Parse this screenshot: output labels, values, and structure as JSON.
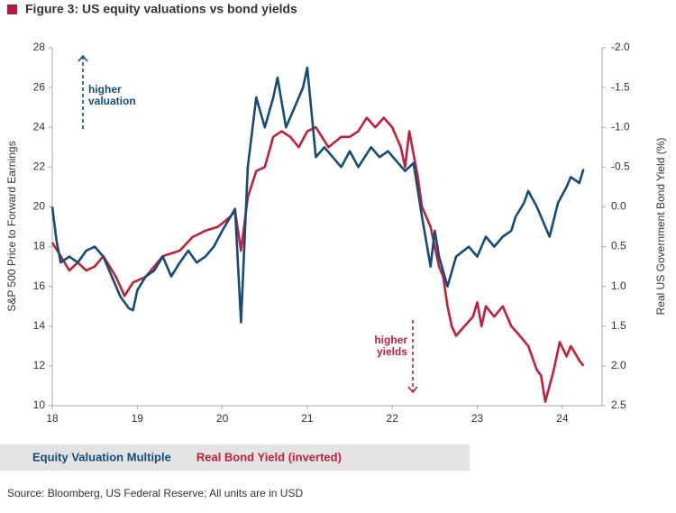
{
  "chart_data": {
    "type": "line",
    "title": "Figure 3: US equity valuations vs bond yields",
    "title_marker_color": "#b5173f",
    "ylabel": "S&P 500 Price to Forward Earnings",
    "y2label": "Real US Government Bond Yield (%)",
    "source": "Source: Bloomberg, US Federal Reserve; All units are in USD",
    "xlim": [
      18,
      24.5
    ],
    "xticks": [
      18,
      19,
      20,
      21,
      22,
      23,
      24
    ],
    "ylim": [
      10,
      28
    ],
    "yticks": [
      10,
      12,
      14,
      16,
      18,
      20,
      22,
      24,
      26,
      28
    ],
    "y2lim": [
      -2.0,
      2.5
    ],
    "y2_inverted": true,
    "y2ticks": [
      {
        "value": -2.0,
        "label": "-2.0"
      },
      -1.5,
      {
        "value": -1.0,
        "label": "-1.0"
      },
      -0.5,
      {
        "value": 0.0,
        "label": "0.0"
      },
      0.5,
      {
        "value": 1.0,
        "label": "1.0"
      },
      1.5,
      {
        "value": 2.0,
        "label": "2.0"
      },
      2.5
    ],
    "grid": false,
    "series": [
      {
        "name": "Equity Valuation Multiple",
        "color": "#154b78",
        "x": [
          18.0,
          18.05,
          18.1,
          18.2,
          18.3,
          18.4,
          18.5,
          18.6,
          18.7,
          18.8,
          18.9,
          18.95,
          19.0,
          19.1,
          19.2,
          19.3,
          19.4,
          19.5,
          19.6,
          19.7,
          19.8,
          19.9,
          20.0,
          20.15,
          20.22,
          20.3,
          20.4,
          20.5,
          20.6,
          20.65,
          20.75,
          20.85,
          20.95,
          21.0,
          21.1,
          21.2,
          21.3,
          21.4,
          21.5,
          21.6,
          21.75,
          21.85,
          21.95,
          22.05,
          22.15,
          22.25,
          22.35,
          22.45,
          22.5,
          22.55,
          22.65,
          22.75,
          22.9,
          23.0,
          23.1,
          23.2,
          23.3,
          23.4,
          23.45,
          23.55,
          23.6,
          23.7,
          23.85,
          23.95,
          24.05,
          24.1,
          24.2,
          24.25
        ],
        "values": [
          20,
          18.3,
          17.2,
          17.5,
          17.2,
          17.8,
          18,
          17.5,
          16.5,
          15.5,
          14.9,
          14.8,
          15.8,
          16.5,
          16.8,
          17.5,
          16.5,
          17.2,
          17.8,
          17.2,
          17.5,
          18,
          18.8,
          19.9,
          14.2,
          22,
          25.5,
          24,
          25.5,
          26.5,
          24,
          25,
          26,
          27,
          22.5,
          23,
          22.5,
          22,
          22.8,
          22,
          23,
          22.5,
          22.8,
          22.3,
          21.8,
          22.2,
          19.5,
          17,
          18.8,
          17.5,
          16,
          17.5,
          18,
          17.5,
          18.5,
          18,
          18.5,
          18.8,
          19.5,
          20.2,
          20.8,
          20,
          18.5,
          20.2,
          21,
          21.5,
          21.2,
          21.9
        ]
      },
      {
        "name": "Real Bond Yield (inverted)",
        "color": "#c0203a",
        "axis": "y2",
        "x": [
          18.0,
          18.1,
          18.2,
          18.3,
          18.4,
          18.5,
          18.6,
          18.75,
          18.85,
          18.95,
          19.1,
          19.3,
          19.5,
          19.65,
          19.8,
          19.95,
          20.1,
          20.15,
          20.22,
          20.3,
          20.4,
          20.5,
          20.6,
          20.7,
          20.8,
          20.9,
          21.0,
          21.1,
          21.25,
          21.4,
          21.5,
          21.6,
          21.7,
          21.8,
          21.9,
          22.0,
          22.1,
          22.15,
          22.2,
          22.3,
          22.35,
          22.45,
          22.5,
          22.55,
          22.6,
          22.65,
          22.7,
          22.75,
          22.85,
          22.95,
          23.0,
          23.05,
          23.1,
          23.2,
          23.3,
          23.4,
          23.5,
          23.6,
          23.7,
          23.75,
          23.8,
          23.9,
          23.97,
          24.05,
          24.1,
          24.2,
          24.25
        ],
        "values": [
          0.45,
          0.62,
          0.8,
          0.7,
          0.8,
          0.75,
          0.62,
          0.88,
          1.12,
          0.95,
          0.88,
          0.62,
          0.55,
          0.38,
          0.3,
          0.25,
          0.12,
          0.05,
          0.55,
          -0.12,
          -0.45,
          -0.5,
          -0.88,
          -0.95,
          -0.88,
          -0.75,
          -0.95,
          -1.0,
          -0.75,
          -0.88,
          -0.88,
          -0.95,
          -1.12,
          -1.0,
          -1.12,
          -1.0,
          -0.75,
          -0.5,
          -0.95,
          -0.38,
          0.0,
          0.25,
          0.5,
          0.75,
          0.88,
          1.25,
          1.5,
          1.62,
          1.5,
          1.38,
          1.2,
          1.5,
          1.25,
          1.38,
          1.25,
          1.5,
          1.62,
          1.75,
          2.05,
          2.12,
          2.45,
          2.05,
          1.7,
          1.88,
          1.75,
          1.93,
          2.0
        ]
      }
    ],
    "annotations": [
      {
        "text": [
          "higher",
          "valuation"
        ],
        "color": "#154b78",
        "direction": "up"
      },
      {
        "text": [
          "higher",
          "yields"
        ],
        "color": "#c0203a",
        "direction": "down"
      }
    ]
  }
}
